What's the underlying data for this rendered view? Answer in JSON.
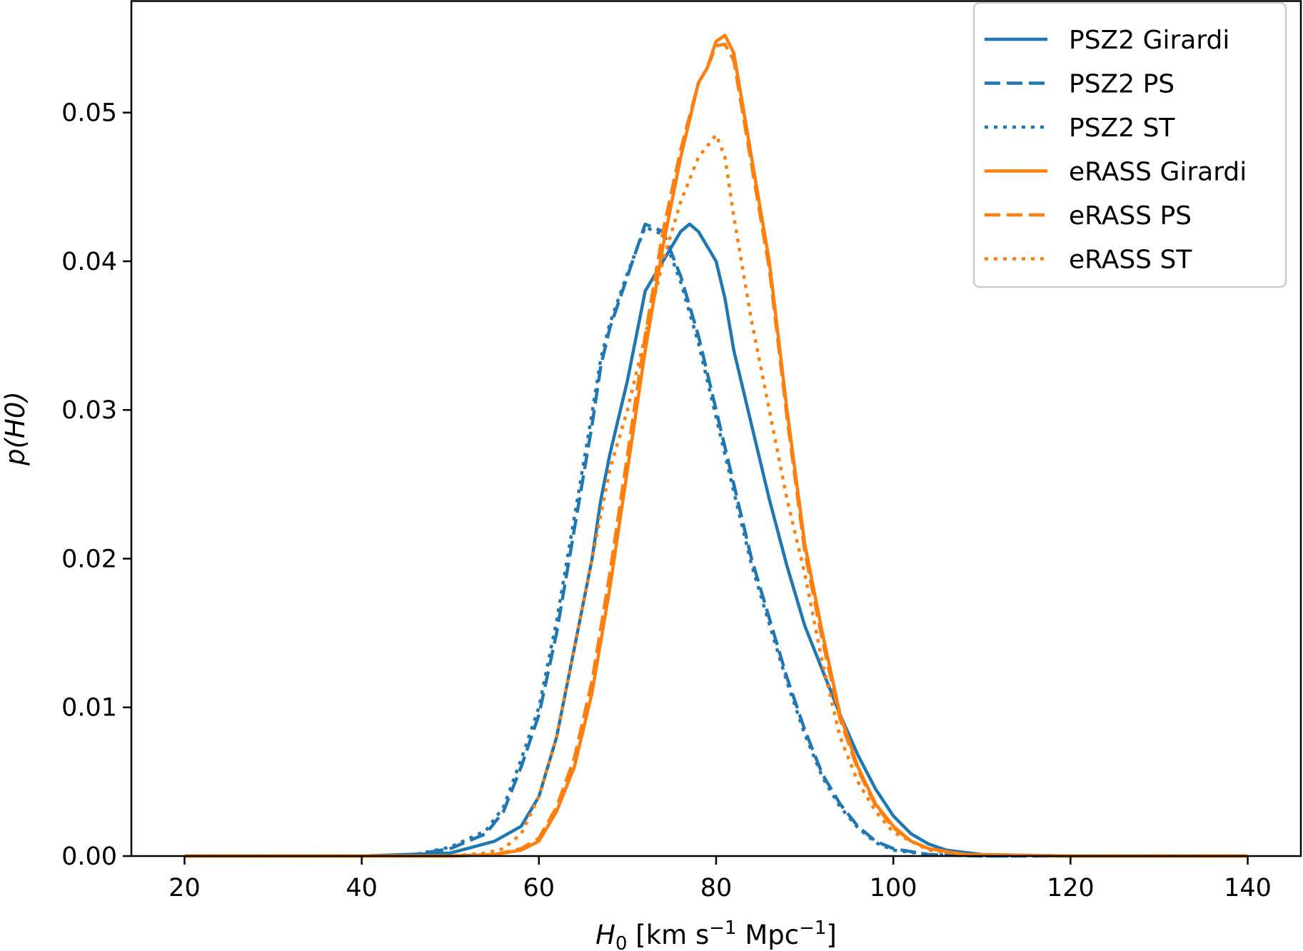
{
  "chart_data": {
    "type": "line",
    "xlabel": "H0 [km s^-1 Mpc^-1]",
    "xlabel_parts": {
      "main": "H",
      "sub": "0",
      "rest": " [km s",
      "sup1": "−1",
      "mid": " Mpc",
      "sup2": "−1",
      "end": "]"
    },
    "ylabel": "p(H0)",
    "ylabel_parts": {
      "pre": "p(",
      "main": "H",
      "sub": "0",
      "post": ")"
    },
    "xlim": [
      14,
      146
    ],
    "ylim": [
      0,
      0.0575
    ],
    "xticks": [
      20,
      40,
      60,
      80,
      100,
      120,
      140
    ],
    "xtick_labels": [
      "20",
      "40",
      "60",
      "80",
      "100",
      "120",
      "140"
    ],
    "yticks": [
      0,
      0.01,
      0.02,
      0.03,
      0.04,
      0.05
    ],
    "ytick_labels": [
      "0.00",
      "0.01",
      "0.02",
      "0.03",
      "0.04",
      "0.05"
    ],
    "grid": false,
    "legend_position": "top-right",
    "colors": {
      "PSZ2": "#1f77b4",
      "eRASS": "#ff7f0e"
    },
    "series": [
      {
        "name": "PSZ2 Girardi",
        "color": "#1f77b4",
        "style": "solid",
        "x": [
          20,
          40,
          50,
          55,
          58,
          60,
          62,
          64,
          66,
          67,
          68,
          70,
          72,
          74,
          76,
          77,
          78,
          79,
          80,
          81,
          82,
          84,
          86,
          88,
          90,
          92,
          94,
          96,
          98,
          100,
          102,
          104,
          106,
          110,
          120,
          140
        ],
        "y": [
          0,
          0,
          0.0002,
          0.001,
          0.002,
          0.004,
          0.008,
          0.014,
          0.02,
          0.024,
          0.027,
          0.032,
          0.038,
          0.04,
          0.042,
          0.0425,
          0.042,
          0.041,
          0.04,
          0.0375,
          0.034,
          0.029,
          0.024,
          0.0195,
          0.0155,
          0.0125,
          0.0095,
          0.0068,
          0.0045,
          0.0027,
          0.0015,
          0.0008,
          0.0004,
          0.0001,
          0,
          0
        ]
      },
      {
        "name": "PSZ2 PS",
        "color": "#1f77b4",
        "style": "dashed",
        "x": [
          20,
          40,
          46,
          50,
          54,
          56,
          58,
          60,
          62,
          64,
          66,
          67,
          68,
          70,
          72,
          74,
          76,
          78,
          80,
          82,
          84,
          86,
          88,
          90,
          92,
          94,
          96,
          98,
          100,
          104,
          110,
          140
        ],
        "y": [
          0,
          0,
          0.0001,
          0.0005,
          0.0015,
          0.003,
          0.006,
          0.0095,
          0.015,
          0.022,
          0.029,
          0.033,
          0.0355,
          0.039,
          0.0425,
          0.042,
          0.039,
          0.035,
          0.03,
          0.025,
          0.02,
          0.016,
          0.012,
          0.0085,
          0.0055,
          0.0035,
          0.002,
          0.001,
          0.0005,
          0.0001,
          0,
          0
        ]
      },
      {
        "name": "PSZ2 ST",
        "color": "#1f77b4",
        "style": "dotted",
        "x": [
          20,
          40,
          46,
          50,
          54,
          56,
          58,
          60,
          62,
          64,
          66,
          67,
          68,
          70,
          72,
          74,
          76,
          78,
          80,
          82,
          84,
          86,
          88,
          90,
          92,
          94,
          96,
          98,
          100,
          104,
          110,
          140
        ],
        "y": [
          0,
          0,
          0.0001,
          0.0006,
          0.0017,
          0.0033,
          0.0065,
          0.01,
          0.0158,
          0.0228,
          0.0298,
          0.0335,
          0.0358,
          0.0392,
          0.0423,
          0.0418,
          0.0386,
          0.0345,
          0.0295,
          0.0245,
          0.0196,
          0.0156,
          0.0117,
          0.0082,
          0.0053,
          0.0033,
          0.0019,
          0.0009,
          0.0004,
          0.0001,
          0,
          0
        ]
      },
      {
        "name": "eRASS Girardi",
        "color": "#ff7f0e",
        "style": "solid",
        "x": [
          20,
          50,
          55,
          58,
          60,
          62,
          64,
          66,
          68,
          70,
          72,
          74,
          76,
          78,
          79,
          80,
          81,
          82,
          84,
          86,
          88,
          90,
          92,
          94,
          96,
          98,
          100,
          102,
          104,
          108,
          120,
          140
        ],
        "y": [
          0,
          0,
          0.0001,
          0.0004,
          0.001,
          0.003,
          0.006,
          0.011,
          0.018,
          0.026,
          0.034,
          0.041,
          0.047,
          0.052,
          0.053,
          0.0548,
          0.0552,
          0.054,
          0.047,
          0.04,
          0.03,
          0.021,
          0.015,
          0.0095,
          0.006,
          0.0035,
          0.002,
          0.001,
          0.0005,
          0.0001,
          0,
          0
        ]
      },
      {
        "name": "eRASS PS",
        "color": "#ff7f0e",
        "style": "dashed",
        "x": [
          20,
          50,
          55,
          58,
          60,
          62,
          64,
          66,
          68,
          70,
          72,
          74,
          76,
          78,
          79,
          80,
          81,
          82,
          84,
          86,
          88,
          90,
          92,
          94,
          96,
          98,
          100,
          102,
          104,
          108,
          120,
          140
        ],
        "y": [
          0,
          0,
          0.0001,
          0.0005,
          0.0012,
          0.0033,
          0.0066,
          0.0118,
          0.019,
          0.027,
          0.035,
          0.042,
          0.0475,
          0.052,
          0.053,
          0.0545,
          0.0546,
          0.0535,
          0.0465,
          0.0395,
          0.0295,
          0.0205,
          0.0145,
          0.0092,
          0.0058,
          0.0034,
          0.0019,
          0.001,
          0.0005,
          0.0001,
          0,
          0
        ]
      },
      {
        "name": "eRASS ST",
        "color": "#ff7f0e",
        "style": "dotted",
        "x": [
          20,
          50,
          54,
          56,
          58,
          60,
          62,
          64,
          66,
          68,
          70,
          72,
          74,
          76,
          78,
          80,
          81,
          82,
          84,
          86,
          88,
          90,
          92,
          94,
          96,
          98,
          100,
          104,
          108,
          120,
          140
        ],
        "y": [
          0,
          0,
          0.0002,
          0.0005,
          0.0015,
          0.004,
          0.008,
          0.014,
          0.02,
          0.026,
          0.03,
          0.035,
          0.04,
          0.044,
          0.047,
          0.0485,
          0.047,
          0.043,
          0.036,
          0.03,
          0.024,
          0.019,
          0.013,
          0.008,
          0.005,
          0.003,
          0.0016,
          0.0004,
          0.0001,
          0,
          0
        ]
      }
    ]
  }
}
